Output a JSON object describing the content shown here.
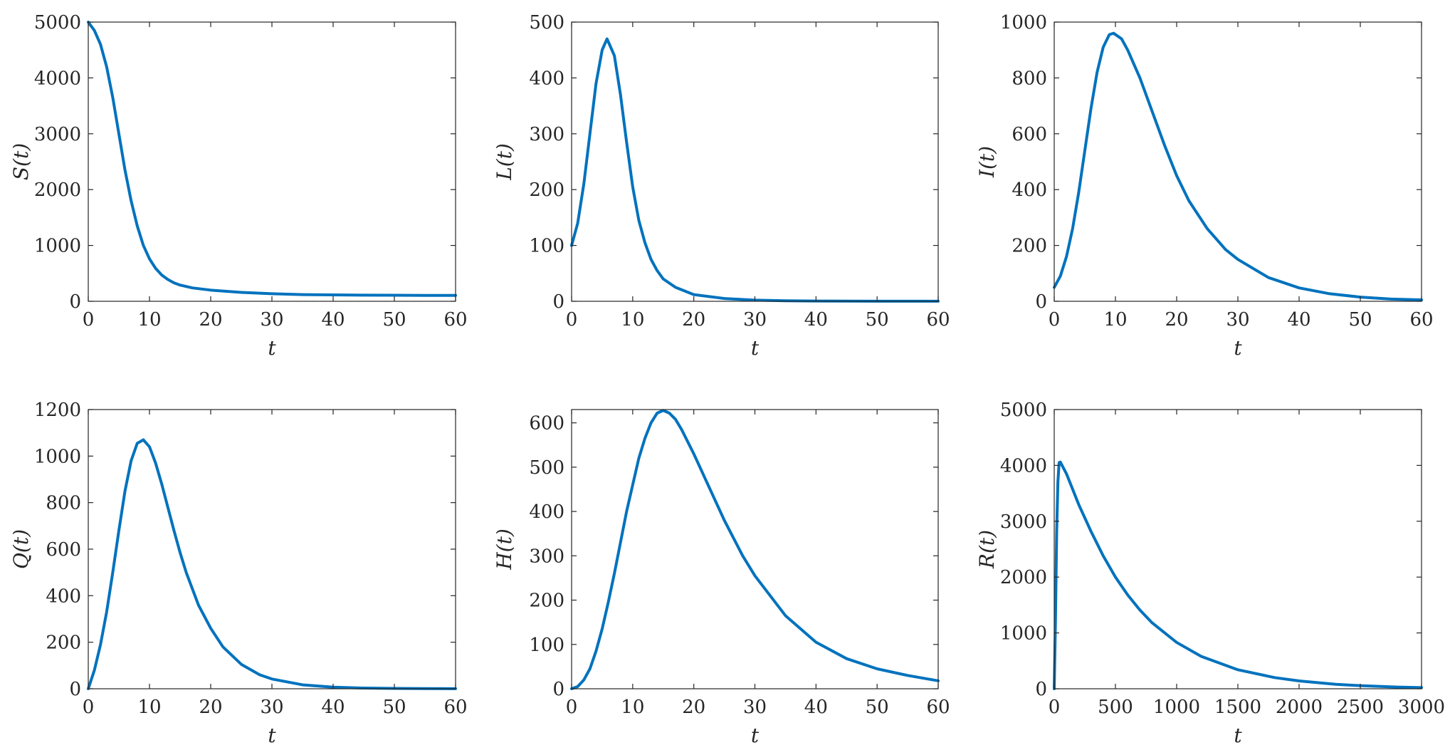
{
  "chart_data": [
    {
      "type": "line",
      "xlabel": "t",
      "ylabel": "S(t)",
      "xlim": [
        0,
        60
      ],
      "ylim": [
        0,
        5000
      ],
      "xticks": [
        0,
        10,
        20,
        30,
        40,
        50,
        60
      ],
      "yticks": [
        0,
        1000,
        2000,
        3000,
        4000,
        5000
      ],
      "grid": false,
      "color": "#0072BD",
      "x": [
        0,
        1,
        2,
        3,
        4,
        5,
        6,
        7,
        8,
        9,
        10,
        11,
        12,
        13,
        14,
        15,
        17,
        20,
        25,
        30,
        35,
        40,
        45,
        50,
        55,
        60
      ],
      "y": [
        5000,
        4850,
        4600,
        4200,
        3650,
        3000,
        2350,
        1800,
        1350,
        1000,
        760,
        590,
        470,
        390,
        330,
        290,
        240,
        200,
        160,
        135,
        120,
        115,
        110,
        108,
        106,
        105
      ]
    },
    {
      "type": "line",
      "xlabel": "t",
      "ylabel": "L(t)",
      "xlim": [
        0,
        60
      ],
      "ylim": [
        0,
        500
      ],
      "xticks": [
        0,
        10,
        20,
        30,
        40,
        50,
        60
      ],
      "yticks": [
        0,
        100,
        200,
        300,
        400,
        500
      ],
      "grid": false,
      "color": "#0072BD",
      "x": [
        0,
        1,
        2,
        3,
        4,
        5,
        5.8,
        7,
        8,
        9,
        10,
        11,
        12,
        13,
        14,
        15,
        17,
        20,
        25,
        30,
        35,
        40,
        50,
        60
      ],
      "y": [
        100,
        140,
        210,
        300,
        390,
        450,
        470,
        440,
        370,
        285,
        205,
        145,
        105,
        75,
        55,
        40,
        25,
        12,
        5,
        2,
        1,
        0.5,
        0.2,
        0.1
      ]
    },
    {
      "type": "line",
      "xlabel": "t",
      "ylabel": "I(t)",
      "xlim": [
        0,
        60
      ],
      "ylim": [
        0,
        1000
      ],
      "xticks": [
        0,
        10,
        20,
        30,
        40,
        50,
        60
      ],
      "yticks": [
        0,
        200,
        400,
        600,
        800,
        1000
      ],
      "grid": false,
      "color": "#0072BD",
      "x": [
        0,
        1,
        2,
        3,
        4,
        5,
        6,
        7,
        8,
        9,
        9.7,
        11,
        12,
        14,
        16,
        18,
        20,
        22,
        25,
        28,
        30,
        35,
        40,
        45,
        50,
        55,
        60
      ],
      "y": [
        50,
        90,
        160,
        260,
        390,
        540,
        690,
        820,
        910,
        955,
        960,
        940,
        900,
        800,
        680,
        560,
        450,
        360,
        260,
        185,
        150,
        85,
        48,
        27,
        15,
        8,
        5
      ]
    },
    {
      "type": "line",
      "xlabel": "t",
      "ylabel": "Q(t)",
      "xlim": [
        0,
        60
      ],
      "ylim": [
        0,
        1200
      ],
      "xticks": [
        0,
        10,
        20,
        30,
        40,
        50,
        60
      ],
      "yticks": [
        0,
        200,
        400,
        600,
        800,
        1000,
        1200
      ],
      "grid": false,
      "color": "#0072BD",
      "x": [
        0,
        1,
        2,
        3,
        4,
        5,
        6,
        7,
        8,
        9,
        10,
        11,
        12,
        13,
        14,
        15,
        16,
        18,
        20,
        22,
        25,
        28,
        30,
        35,
        40,
        45,
        50,
        55,
        60
      ],
      "y": [
        0,
        80,
        190,
        330,
        500,
        680,
        850,
        980,
        1055,
        1070,
        1040,
        970,
        880,
        780,
        680,
        585,
        500,
        360,
        260,
        180,
        105,
        60,
        42,
        17,
        7,
        3,
        1.5,
        0.7,
        0.3
      ]
    },
    {
      "type": "line",
      "xlabel": "t",
      "ylabel": "H(t)",
      "xlim": [
        0,
        60
      ],
      "ylim": [
        0,
        630
      ],
      "xticks": [
        0,
        10,
        20,
        30,
        40,
        50,
        60
      ],
      "yticks": [
        0,
        100,
        200,
        300,
        400,
        500,
        600
      ],
      "grid": false,
      "color": "#0072BD",
      "x": [
        0,
        1,
        2,
        3,
        4,
        5,
        6,
        7,
        8,
        9,
        10,
        11,
        12,
        13,
        14,
        15,
        16,
        17,
        18,
        20,
        22,
        25,
        28,
        30,
        35,
        40,
        45,
        50,
        55,
        60
      ],
      "y": [
        0,
        5,
        20,
        45,
        85,
        135,
        195,
        260,
        330,
        400,
        460,
        520,
        565,
        600,
        622,
        628,
        622,
        608,
        585,
        530,
        470,
        380,
        300,
        255,
        165,
        105,
        68,
        45,
        30,
        18
      ]
    },
    {
      "type": "line",
      "xlabel": "t",
      "ylabel": "R(t)",
      "xlim": [
        0,
        3000
      ],
      "ylim": [
        0,
        5000
      ],
      "xticks": [
        0,
        500,
        1000,
        1500,
        2000,
        2500,
        3000
      ],
      "yticks": [
        0,
        1000,
        2000,
        3000,
        4000,
        5000
      ],
      "grid": false,
      "color": "#0072BD",
      "x": [
        0,
        10,
        20,
        30,
        40,
        50,
        100,
        200,
        300,
        400,
        500,
        600,
        700,
        800,
        1000,
        1200,
        1500,
        1800,
        2000,
        2300,
        2500,
        2800,
        3000
      ],
      "y": [
        0,
        1200,
        2800,
        3700,
        4050,
        4060,
        3850,
        3300,
        2820,
        2380,
        2000,
        1680,
        1410,
        1180,
        830,
        580,
        340,
        200,
        140,
        80,
        56,
        30,
        20
      ]
    }
  ]
}
